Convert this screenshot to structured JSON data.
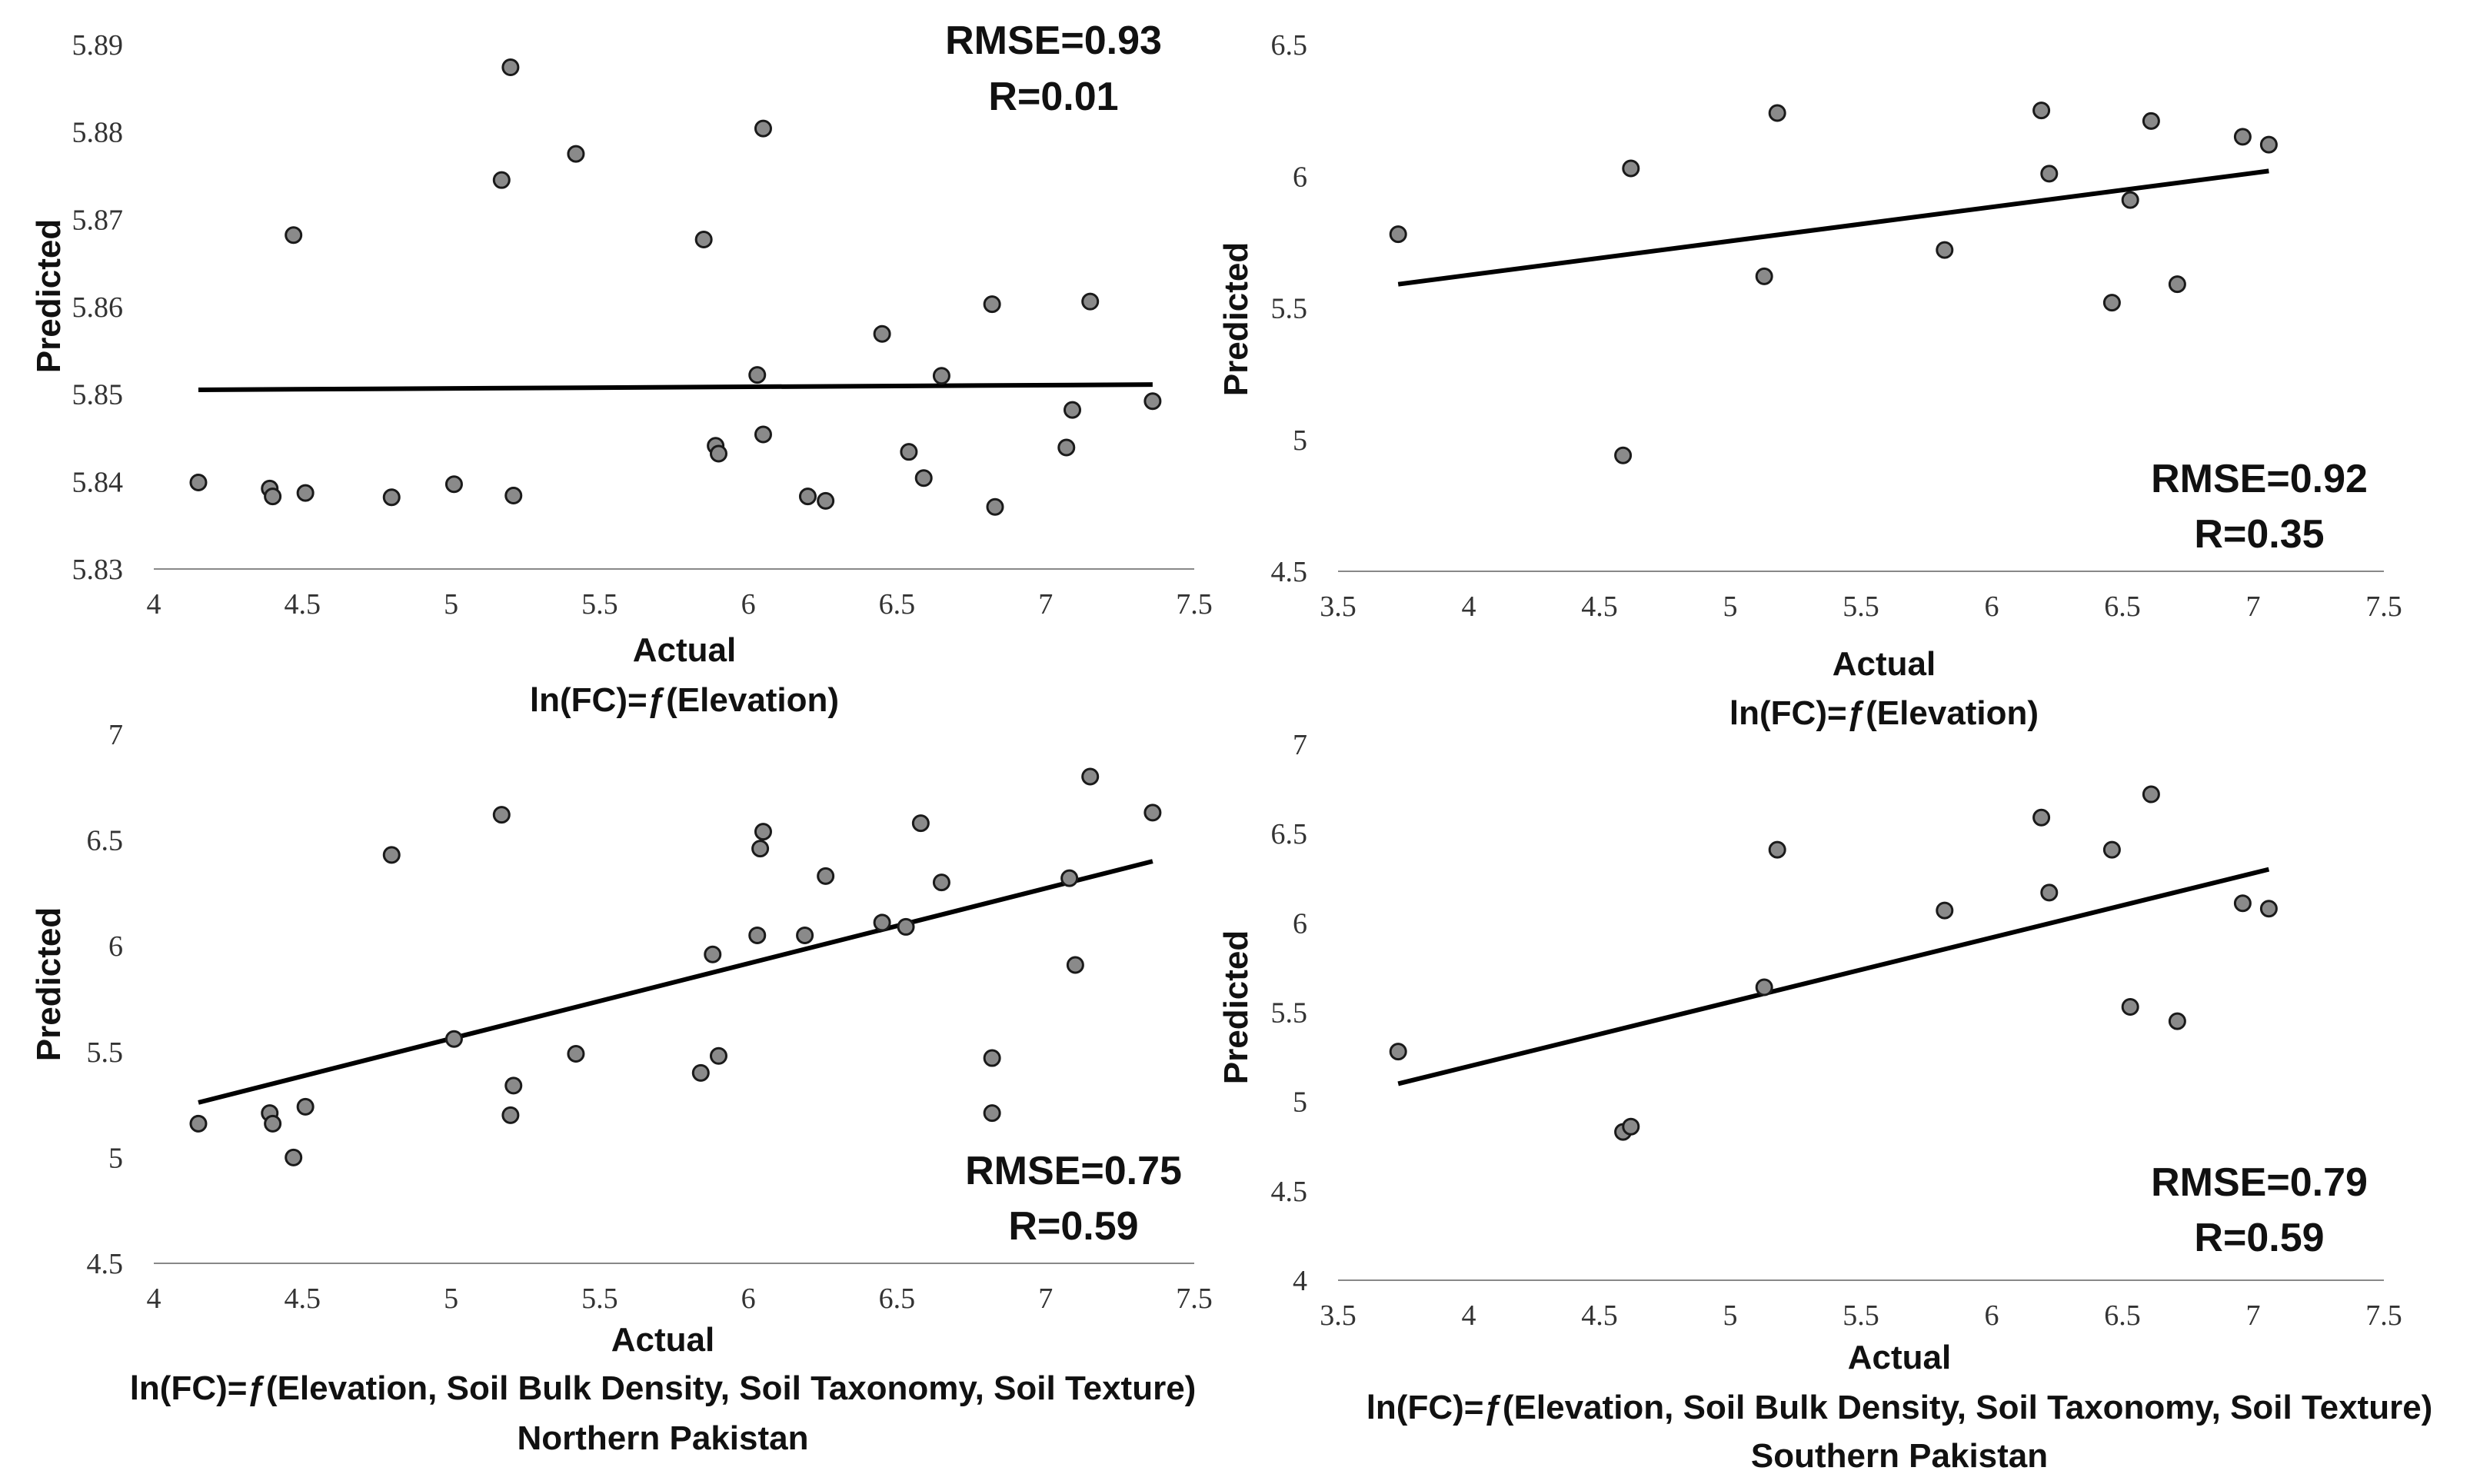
{
  "chart_data": [
    {
      "type": "scatter",
      "id": "top-left",
      "xlabel": "Actual",
      "ylabel": "Predicted",
      "caption_lines": [
        "ln(FC)=ƒ(Elevation)"
      ],
      "stats": {
        "rmse": "RMSE=0.93",
        "r": "R=0.01"
      },
      "xlim": [
        4,
        7.5
      ],
      "ylim": [
        5.83,
        5.89
      ],
      "xticks": [
        4,
        4.5,
        5,
        5.5,
        6,
        6.5,
        7,
        7.5
      ],
      "yticks": [
        5.83,
        5.84,
        5.85,
        5.86,
        5.87,
        5.88,
        5.89
      ],
      "xtick_labels": [
        "4",
        "4.5",
        "5",
        "5.5",
        "6",
        "6.5",
        "7",
        "7.5"
      ],
      "ytick_labels": [
        "5.83",
        "5.84",
        "5.85",
        "5.86",
        "5.87",
        "5.88",
        "5.89"
      ],
      "trendline": {
        "x": [
          4.15,
          7.36
        ],
        "y": [
          5.8505,
          5.8511
        ]
      },
      "points": [
        [
          4.15,
          5.8399
        ],
        [
          4.39,
          5.8392
        ],
        [
          4.4,
          5.8383
        ],
        [
          4.47,
          5.8682
        ],
        [
          4.51,
          5.8387
        ],
        [
          4.8,
          5.8382
        ],
        [
          5.01,
          5.8397
        ],
        [
          5.17,
          5.8745
        ],
        [
          5.2,
          5.8874
        ],
        [
          5.21,
          5.8384
        ],
        [
          5.42,
          5.8775
        ],
        [
          5.85,
          5.8677
        ],
        [
          5.89,
          5.8441
        ],
        [
          5.9,
          5.8432
        ],
        [
          6.03,
          5.8522
        ],
        [
          6.05,
          5.8804
        ],
        [
          6.05,
          5.8454
        ],
        [
          6.2,
          5.8383
        ],
        [
          6.26,
          5.8378
        ],
        [
          6.45,
          5.8569
        ],
        [
          6.54,
          5.8434
        ],
        [
          6.59,
          5.8404
        ],
        [
          6.65,
          5.8521
        ],
        [
          6.82,
          5.8603
        ],
        [
          6.83,
          5.8371
        ],
        [
          7.07,
          5.8439
        ],
        [
          7.09,
          5.8482
        ],
        [
          7.15,
          5.8606
        ],
        [
          7.36,
          5.8492
        ]
      ]
    },
    {
      "type": "scatter",
      "id": "top-right",
      "xlabel": "Actual",
      "ylabel": "Predicted",
      "caption_lines": [
        "ln(FC)=ƒ(Elevation)"
      ],
      "stats": {
        "rmse": "RMSE=0.92",
        "r": "R=0.35"
      },
      "xlim": [
        3.5,
        7.5
      ],
      "ylim": [
        4.5,
        6.5
      ],
      "xticks": [
        3.5,
        4,
        4.5,
        5,
        5.5,
        6,
        6.5,
        7,
        7.5
      ],
      "yticks": [
        4.5,
        5,
        5.5,
        6,
        6.5
      ],
      "xtick_labels": [
        "3.5",
        "4",
        "4.5",
        "5",
        "5.5",
        "6",
        "6.5",
        "7",
        "7.5"
      ],
      "ytick_labels": [
        "4.5",
        "5",
        "5.5",
        "6",
        "6.5"
      ],
      "trendline": {
        "x": [
          3.73,
          7.06
        ],
        "y": [
          5.59,
          6.02
        ]
      },
      "points": [
        [
          3.73,
          5.78
        ],
        [
          4.59,
          4.94
        ],
        [
          4.62,
          6.03
        ],
        [
          5.13,
          5.62
        ],
        [
          5.18,
          6.24
        ],
        [
          5.82,
          5.72
        ],
        [
          6.19,
          6.25
        ],
        [
          6.22,
          6.01
        ],
        [
          6.46,
          5.52
        ],
        [
          6.53,
          5.91
        ],
        [
          6.61,
          6.21
        ],
        [
          6.71,
          5.59
        ],
        [
          6.96,
          6.15
        ],
        [
          7.06,
          6.12
        ]
      ]
    },
    {
      "type": "scatter",
      "id": "bottom-left",
      "xlabel": "Actual",
      "ylabel": "Predicted",
      "caption_lines": [
        "ln(FC)=ƒ(Elevation, Soil Bulk Density, Soil Taxonomy, Soil Texture)",
        "Northern Pakistan"
      ],
      "stats": {
        "rmse": "RMSE=0.75",
        "r": "R=0.59"
      },
      "xlim": [
        4,
        7.5
      ],
      "ylim": [
        4.5,
        7
      ],
      "xticks": [
        4,
        4.5,
        5,
        5.5,
        6,
        6.5,
        7,
        7.5
      ],
      "yticks": [
        4.5,
        5,
        5.5,
        6,
        6.5,
        7
      ],
      "xtick_labels": [
        "4",
        "4.5",
        "5",
        "5.5",
        "6",
        "6.5",
        "7",
        "7.5"
      ],
      "ytick_labels": [
        "4.5",
        "5",
        "5.5",
        "6",
        "6.5",
        "7"
      ],
      "trendline": {
        "x": [
          4.15,
          7.36
        ],
        "y": [
          5.26,
          6.4
        ]
      },
      "points": [
        [
          4.15,
          5.16
        ],
        [
          4.39,
          5.21
        ],
        [
          4.4,
          5.16
        ],
        [
          4.47,
          5.0
        ],
        [
          4.51,
          5.24
        ],
        [
          4.8,
          6.43
        ],
        [
          5.01,
          5.56
        ],
        [
          5.17,
          6.62
        ],
        [
          5.2,
          5.2
        ],
        [
          5.21,
          5.34
        ],
        [
          5.42,
          5.49
        ],
        [
          5.84,
          5.4
        ],
        [
          5.88,
          5.96
        ],
        [
          5.9,
          5.48
        ],
        [
          6.03,
          6.05
        ],
        [
          6.04,
          6.46
        ],
        [
          6.05,
          6.54
        ],
        [
          6.19,
          6.05
        ],
        [
          6.26,
          6.33
        ],
        [
          6.45,
          6.11
        ],
        [
          6.53,
          6.09
        ],
        [
          6.58,
          6.58
        ],
        [
          6.65,
          6.3
        ],
        [
          6.82,
          5.47
        ],
        [
          6.82,
          5.21
        ],
        [
          7.08,
          6.32
        ],
        [
          7.1,
          5.91
        ],
        [
          7.15,
          6.8
        ],
        [
          7.36,
          6.63
        ]
      ]
    },
    {
      "type": "scatter",
      "id": "bottom-right",
      "xlabel": "Actual",
      "ylabel": "Predicted",
      "caption_lines": [
        "ln(FC)=ƒ(Elevation, Soil Bulk Density, Soil Taxonomy, Soil Texture)",
        "Southern Pakistan"
      ],
      "stats": {
        "rmse": "RMSE=0.79",
        "r": "R=0.59"
      },
      "xlim": [
        3.5,
        7.5
      ],
      "ylim": [
        4,
        7
      ],
      "xticks": [
        3.5,
        4,
        4.5,
        5,
        5.5,
        6,
        6.5,
        7,
        7.5
      ],
      "yticks": [
        4,
        4.5,
        5,
        5.5,
        6,
        6.5,
        7
      ],
      "xtick_labels": [
        "3.5",
        "4",
        "4.5",
        "5",
        "5.5",
        "6",
        "6.5",
        "7",
        "7.5"
      ],
      "ytick_labels": [
        "4",
        "4.5",
        "5",
        "5.5",
        "6",
        "6.5",
        "7"
      ],
      "trendline": {
        "x": [
          3.73,
          7.06
        ],
        "y": [
          5.1,
          6.3
        ]
      },
      "points": [
        [
          3.73,
          5.28
        ],
        [
          4.59,
          4.83
        ],
        [
          4.62,
          4.86
        ],
        [
          5.13,
          5.64
        ],
        [
          5.18,
          6.41
        ],
        [
          5.82,
          6.07
        ],
        [
          6.19,
          6.59
        ],
        [
          6.22,
          6.17
        ],
        [
          6.46,
          6.41
        ],
        [
          6.53,
          5.53
        ],
        [
          6.61,
          6.72
        ],
        [
          6.71,
          5.45
        ],
        [
          6.96,
          6.11
        ],
        [
          7.06,
          6.08
        ]
      ]
    }
  ]
}
